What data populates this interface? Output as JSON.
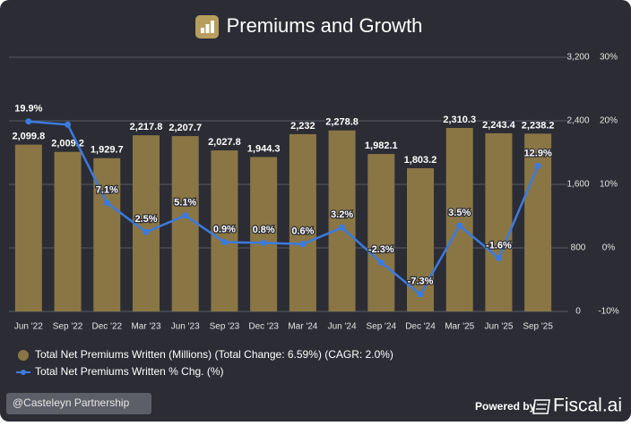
{
  "chart_data": {
    "type": "bar",
    "title": "Premiums and Growth",
    "categories": [
      "Jun '22",
      "Sep '22",
      "Dec '22",
      "Mar '23",
      "Jun '23",
      "Sep '23",
      "Dec '23",
      "Mar '24",
      "Jun '24",
      "Sep '24",
      "Dec '24",
      "Mar '25",
      "Jun '25",
      "Sep '25"
    ],
    "series": [
      {
        "name": "Total Net Premiums Written (Millions) (Total Change: 6.59%) (CAGR: 2.0%)",
        "type": "bar",
        "color": "#8a7645",
        "values": [
          2099.8,
          2009.2,
          1929.7,
          2217.8,
          2207.7,
          2027.8,
          1944.3,
          2232,
          2278.8,
          1982.1,
          1803.2,
          2310.3,
          2243.4,
          2238.2
        ],
        "value_labels": [
          "2,099.8",
          "2,009.2",
          "1,929.7",
          "2,217.8",
          "2,207.7",
          "2,027.8",
          "1,944.3",
          "2,232",
          "2,278.8",
          "1,982.1",
          "1,803.2",
          "2,310.3",
          "2,243.4",
          "2,238.2"
        ]
      },
      {
        "name": "Total Net Premiums Written % Chg. (%)",
        "type": "line",
        "axis": "y2",
        "color": "#3b7be0",
        "values": [
          19.9,
          19.4,
          7.1,
          2.5,
          5.1,
          0.9,
          0.8,
          0.6,
          3.2,
          -2.3,
          -7.3,
          3.5,
          -1.6,
          12.9
        ],
        "value_labels": [
          "19.9%",
          null,
          "7.1%",
          "2.5%",
          "5.1%",
          "0.9%",
          "0.8%",
          "0.6%",
          "3.2%",
          "-2.3%",
          "-7.3%",
          "3.5%",
          "-1.6%",
          "12.9%"
        ]
      }
    ],
    "ylim": [
      0,
      3200
    ],
    "yticks": [
      0,
      800,
      {
        "value": 1600,
        "label": "1,600"
      },
      {
        "value": 2400,
        "label": "2,400"
      },
      {
        "value": 3200,
        "label": "3,200"
      }
    ],
    "y2lim": [
      -10,
      30
    ],
    "y2ticks": [
      {
        "value": -10,
        "label": "-10%"
      },
      {
        "value": 0,
        "label": "0%"
      },
      {
        "value": 10,
        "label": "10%"
      },
      {
        "value": 20,
        "label": "20%"
      },
      {
        "value": 30,
        "label": "30%"
      }
    ],
    "grid": true,
    "legend": "bottom-left"
  },
  "footer": {
    "credit": "@Casteleyn Partnership",
    "powered_by": "Powered by",
    "brand": "Fiscal.ai"
  }
}
